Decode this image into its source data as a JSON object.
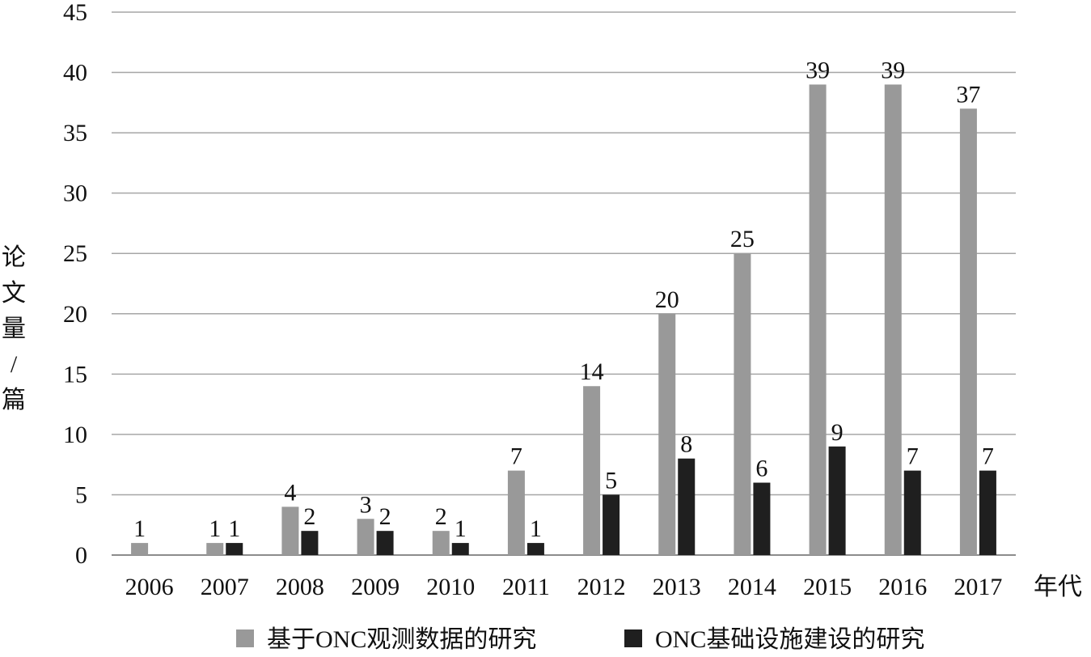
{
  "chart_data": {
    "type": "bar",
    "title": "",
    "xlabel": "年代",
    "ylabel": "论文量/篇",
    "ylim": [
      0,
      45
    ],
    "yticks": [
      0,
      5,
      10,
      15,
      20,
      25,
      30,
      35,
      40,
      45
    ],
    "grid": true,
    "legend_position": "bottom",
    "categories": [
      "2006",
      "2007",
      "2008",
      "2009",
      "2010",
      "2011",
      "2012",
      "2013",
      "2014",
      "2015",
      "2016",
      "2017"
    ],
    "series": [
      {
        "name": "基于ONC观测数据的研究",
        "color": "#999999",
        "values": [
          1,
          1,
          4,
          3,
          2,
          7,
          14,
          20,
          25,
          39,
          39,
          37
        ]
      },
      {
        "name": "ONC基础设施建设的研究",
        "color": "#1f1f1f",
        "values": [
          null,
          1,
          2,
          2,
          1,
          1,
          5,
          8,
          6,
          9,
          7,
          7
        ]
      }
    ]
  }
}
